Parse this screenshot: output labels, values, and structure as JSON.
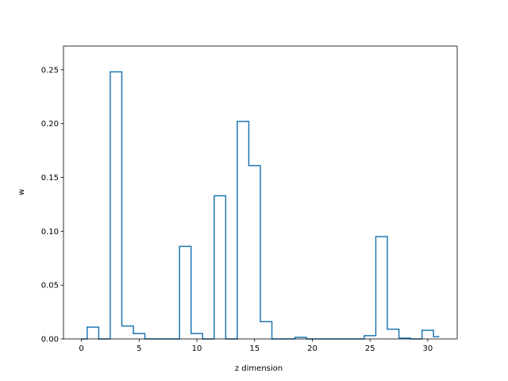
{
  "chart_data": {
    "type": "step",
    "title": "",
    "xlabel": "z dimension",
    "ylabel": "w",
    "xlim": [
      -1.55,
      32.55
    ],
    "ylim": [
      0,
      0.272
    ],
    "xticks": [
      0,
      5,
      10,
      15,
      20,
      25,
      30
    ],
    "yticks": [
      0.0,
      0.05,
      0.1,
      0.15,
      0.2,
      0.25
    ],
    "x": [
      0,
      1,
      2,
      3,
      4,
      5,
      6,
      7,
      8,
      9,
      10,
      11,
      12,
      13,
      14,
      15,
      16,
      17,
      18,
      19,
      20,
      21,
      22,
      23,
      24,
      25,
      26,
      27,
      28,
      29,
      30,
      31
    ],
    "values": [
      0.0,
      0.011,
      0.0,
      0.248,
      0.012,
      0.005,
      0.0,
      0.0,
      0.0,
      0.086,
      0.005,
      0.0,
      0.133,
      0.0,
      0.202,
      0.161,
      0.016,
      0.0,
      0.0,
      0.0015,
      0.0,
      0.0,
      0.0,
      0.0,
      0.0,
      0.003,
      0.095,
      0.009,
      0.0007,
      0.0,
      0.008,
      0.002
    ],
    "color": "#1f77b4",
    "grid": false
  }
}
